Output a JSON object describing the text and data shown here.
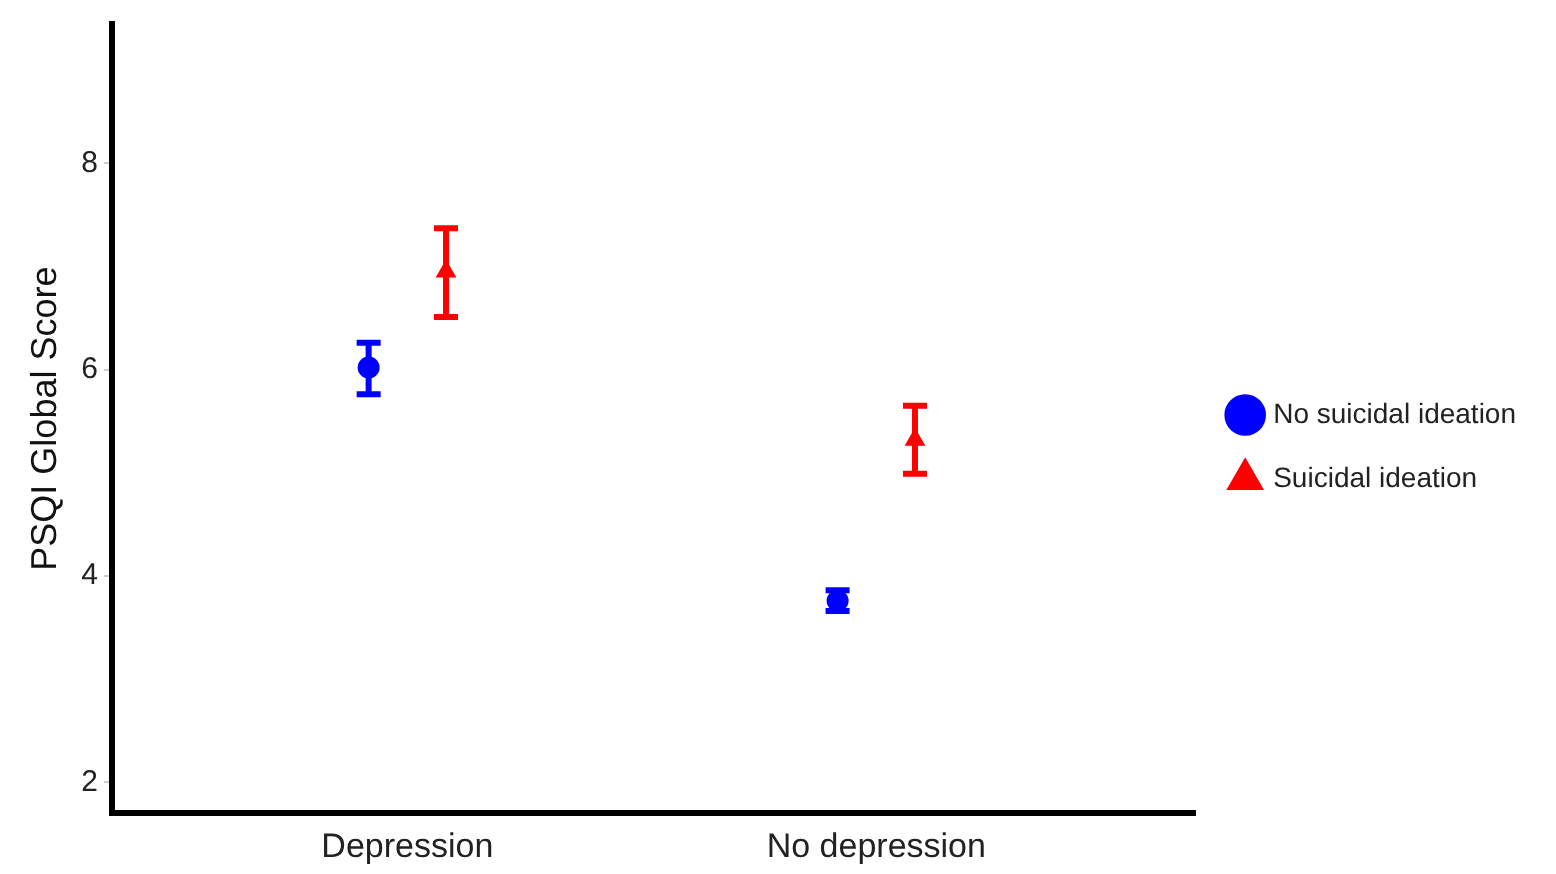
{
  "chart_data": {
    "type": "scatter",
    "ylabel": "PSQI Global Score",
    "categories": [
      "Depression",
      "No depression"
    ],
    "series": [
      {
        "name": "No suicidal ideation",
        "color": "#0000ff",
        "marker": "circle",
        "values": [
          6.02,
          3.76
        ],
        "errors": [
          [
            5.76,
            6.26
          ],
          [
            3.66,
            3.86
          ]
        ]
      },
      {
        "name": "Suicidal ideation",
        "color": "#ff0000",
        "marker": "triangle",
        "values": [
          6.95,
          5.32
        ],
        "errors": [
          [
            6.51,
            7.37
          ],
          [
            4.99,
            5.65
          ]
        ]
      }
    ],
    "ylim": [
      1.7,
      9.35
    ],
    "yticks": [
      2,
      4,
      6,
      8
    ],
    "grid": false,
    "legend": "right"
  }
}
